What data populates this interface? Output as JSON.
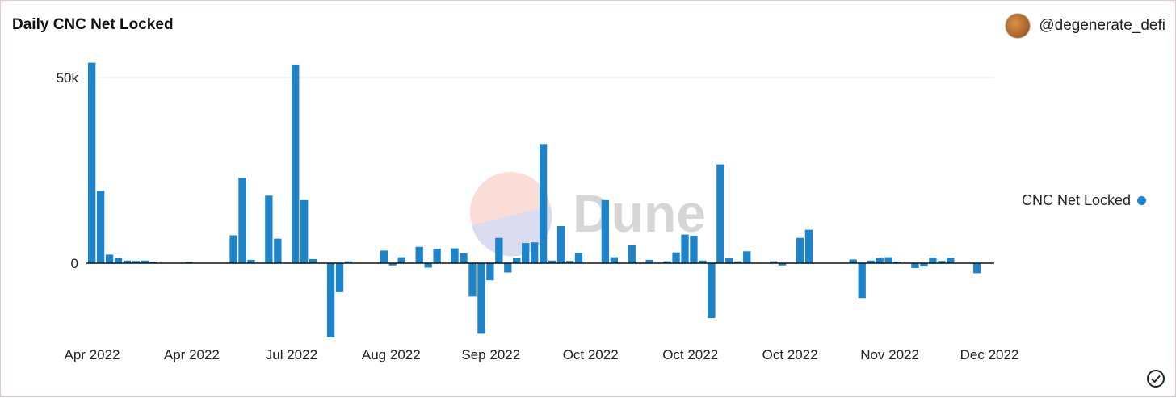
{
  "header": {
    "title": "Daily CNC Net Locked",
    "author": "@degenerate_defi"
  },
  "watermark": {
    "text": "Dune"
  },
  "legend": {
    "label": "CNC Net Locked",
    "color": "#1d84c9"
  },
  "chart_data": {
    "type": "bar",
    "title": "Daily CNC Net Locked",
    "xlabel": "",
    "ylabel": "",
    "ylim": [
      -24000,
      56000
    ],
    "y_ticks": [
      {
        "value": 0,
        "label": "0"
      },
      {
        "value": 50000,
        "label": "50k"
      }
    ],
    "x_tick_labels": [
      "Apr 2022",
      "Apr 2022",
      "Jul 2022",
      "Aug 2022",
      "Sep 2022",
      "Oct 2022",
      "Oct 2022",
      "Oct 2022",
      "Nov 2022",
      "Dec 2022"
    ],
    "grid": "horizontal",
    "legend_position": "right",
    "series": [
      {
        "name": "CNC Net Locked",
        "color": "#1d84c9",
        "values": [
          54000,
          19500,
          2300,
          1400,
          700,
          600,
          700,
          400,
          0,
          0,
          0,
          300,
          0,
          0,
          0,
          0,
          7500,
          23000,
          900,
          0,
          18200,
          6600,
          0,
          53500,
          17000,
          1100,
          0,
          -20000,
          -7800,
          500,
          0,
          0,
          0,
          3400,
          -600,
          1600,
          0,
          4400,
          -1200,
          3900,
          0,
          4000,
          2700,
          -9000,
          -19000,
          -4600,
          6800,
          -2500,
          1400,
          5400,
          5600,
          32100,
          700,
          10000,
          600,
          2800,
          0,
          0,
          17000,
          1600,
          0,
          4800,
          0,
          900,
          0,
          500,
          2900,
          7700,
          7400,
          700,
          -14800,
          26600,
          1300,
          500,
          3200,
          0,
          0,
          500,
          -600,
          0,
          6800,
          9000,
          0,
          0,
          0,
          0,
          1000,
          -9400,
          700,
          1400,
          1600,
          400,
          0,
          -1300,
          -900,
          1500,
          600,
          1400,
          0,
          0,
          -2700
        ]
      }
    ]
  }
}
